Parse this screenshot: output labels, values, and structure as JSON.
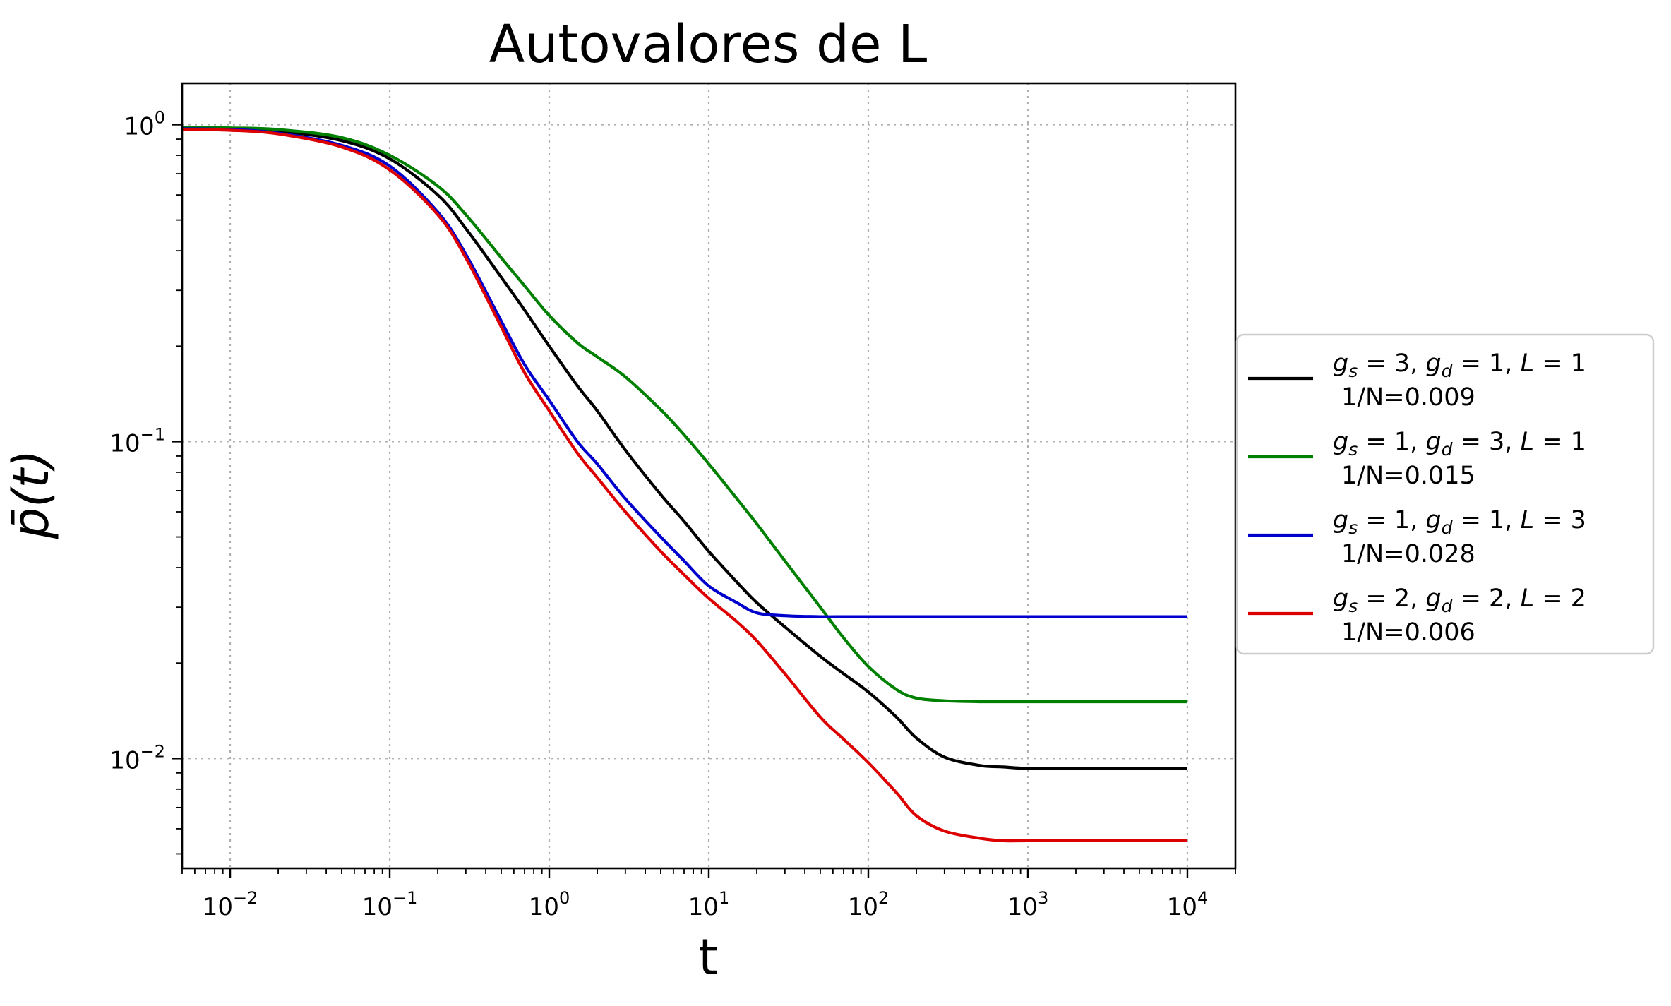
{
  "chart_data": {
    "type": "line",
    "title": "Autovalores de L",
    "xlabel": "t",
    "ylabel": "p̄(t)",
    "xscale": "log",
    "yscale": "log",
    "xlim": [
      0.005,
      20000
    ],
    "ylim": [
      0.0045,
      1.35
    ],
    "grid": true,
    "legend_placement": "center-left outside right",
    "xticks": [
      {
        "value": 0.01,
        "base": "10",
        "exp": "−2"
      },
      {
        "value": 0.1,
        "base": "10",
        "exp": "−1"
      },
      {
        "value": 1,
        "base": "10",
        "exp": "0"
      },
      {
        "value": 10,
        "base": "10",
        "exp": "1"
      },
      {
        "value": 100,
        "base": "10",
        "exp": "2"
      },
      {
        "value": 1000,
        "base": "10",
        "exp": "3"
      },
      {
        "value": 10000,
        "base": "10",
        "exp": "4"
      }
    ],
    "yticks": [
      {
        "value": 0.01,
        "base": "10",
        "exp": "−2"
      },
      {
        "value": 0.1,
        "base": "10",
        "exp": "−1"
      },
      {
        "value": 1,
        "base": "10",
        "exp": "0"
      }
    ],
    "series": [
      {
        "name": "g_s = 3, g_d = 1, L = 1",
        "legend_line1": {
          "gs": "3",
          "gd": "1",
          "L": "1"
        },
        "legend_line2": "1/N=0.009",
        "color": "#000000",
        "x": [
          0.005,
          0.01,
          0.02,
          0.05,
          0.1,
          0.2,
          0.3,
          0.5,
          0.7,
          1,
          1.5,
          2,
          3,
          5,
          7,
          10,
          15,
          20,
          30,
          50,
          70,
          100,
          150,
          200,
          300,
          500,
          700,
          1000,
          2000,
          5000,
          10000
        ],
        "y": [
          0.975,
          0.972,
          0.955,
          0.89,
          0.78,
          0.6,
          0.47,
          0.33,
          0.26,
          0.2,
          0.15,
          0.125,
          0.094,
          0.068,
          0.056,
          0.045,
          0.036,
          0.031,
          0.026,
          0.021,
          0.0185,
          0.0162,
          0.0135,
          0.0116,
          0.0101,
          0.0095,
          0.0094,
          0.0093,
          0.0093,
          0.0093,
          0.0093
        ]
      },
      {
        "name": "g_s = 1, g_d = 3, L = 1",
        "legend_line1": {
          "gs": "1",
          "gd": "3",
          "L": "1"
        },
        "legend_line2": "1/N=0.015",
        "color": "#008000",
        "x": [
          0.005,
          0.01,
          0.02,
          0.05,
          0.1,
          0.2,
          0.3,
          0.5,
          0.7,
          1,
          1.5,
          2,
          3,
          5,
          7,
          10,
          15,
          20,
          30,
          50,
          70,
          100,
          150,
          200,
          300,
          500,
          700,
          1000,
          2000,
          5000,
          10000
        ],
        "y": [
          0.98,
          0.976,
          0.965,
          0.91,
          0.8,
          0.64,
          0.52,
          0.38,
          0.31,
          0.25,
          0.205,
          0.185,
          0.16,
          0.126,
          0.105,
          0.085,
          0.066,
          0.055,
          0.042,
          0.03,
          0.024,
          0.0195,
          0.0165,
          0.0155,
          0.0152,
          0.0151,
          0.0151,
          0.0151,
          0.0151,
          0.0151,
          0.0151
        ]
      },
      {
        "name": "g_s = 1, g_d = 1, L = 3",
        "legend_line1": {
          "gs": "1",
          "gd": "1",
          "L": "3"
        },
        "legend_line2": "1/N=0.028",
        "color": "#0000cc",
        "x": [
          0.005,
          0.01,
          0.02,
          0.05,
          0.1,
          0.2,
          0.3,
          0.5,
          0.7,
          1,
          1.5,
          2,
          3,
          5,
          7,
          10,
          15,
          20,
          30,
          50,
          70,
          100,
          200,
          500,
          1000,
          5000,
          10000
        ],
        "y": [
          0.97,
          0.965,
          0.94,
          0.86,
          0.74,
          0.53,
          0.39,
          0.24,
          0.175,
          0.135,
          0.1,
          0.085,
          0.066,
          0.05,
          0.042,
          0.035,
          0.031,
          0.0288,
          0.0282,
          0.028,
          0.028,
          0.028,
          0.028,
          0.028,
          0.028,
          0.028,
          0.028
        ]
      },
      {
        "name": "g_s = 2, g_d = 2, L = 2",
        "legend_line1": {
          "gs": "2",
          "gd": "2",
          "L": "2"
        },
        "legend_line2": "1/N=0.006",
        "color": "#dd0000",
        "x": [
          0.005,
          0.01,
          0.02,
          0.05,
          0.1,
          0.2,
          0.3,
          0.5,
          0.7,
          1,
          1.5,
          2,
          3,
          5,
          7,
          10,
          15,
          20,
          30,
          50,
          70,
          100,
          150,
          200,
          300,
          500,
          700,
          1000,
          2000,
          5000,
          10000
        ],
        "y": [
          0.965,
          0.96,
          0.935,
          0.85,
          0.72,
          0.52,
          0.38,
          0.23,
          0.165,
          0.125,
          0.092,
          0.077,
          0.06,
          0.045,
          0.038,
          0.032,
          0.027,
          0.0235,
          0.0185,
          0.0135,
          0.0115,
          0.0097,
          0.0078,
          0.0066,
          0.0059,
          0.0056,
          0.0055,
          0.0055,
          0.0055,
          0.0055,
          0.0055
        ]
      }
    ]
  }
}
